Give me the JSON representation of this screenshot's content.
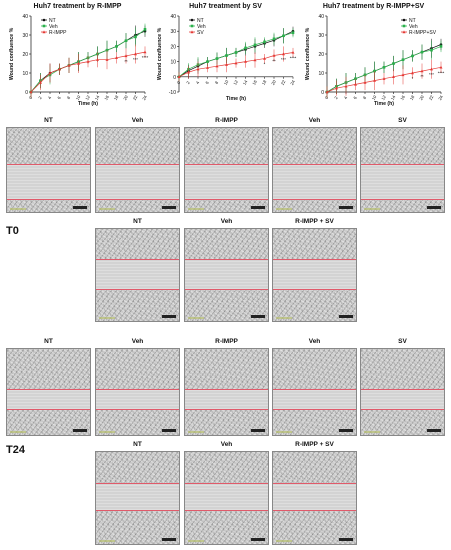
{
  "charts": [
    {
      "title": "Huh7 treatment by R-IMPP",
      "legend": [
        "NT",
        "Veh",
        "R-IMPP"
      ]
    },
    {
      "title": "Huh7 treatment by SV",
      "legend": [
        "NT",
        "Veh",
        "SV"
      ]
    },
    {
      "title": "Huh7 treatment by R-IMPP+SV",
      "legend": [
        "NT",
        "Veh",
        "R-IMPP+SV"
      ]
    }
  ],
  "colors": {
    "NT": "#111111",
    "Veh": "#2bb24c",
    "Treat": "#e53935",
    "line": "#e05a6a"
  },
  "chart_data": [
    {
      "type": "line",
      "title": "Huh7 treatment by R-IMPP",
      "xlabel": "Time (h)",
      "ylabel": "Wound confluence %",
      "x": [
        0,
        2,
        4,
        6,
        8,
        10,
        12,
        14,
        16,
        18,
        20,
        22,
        24
      ],
      "xlim": [
        0,
        24
      ],
      "ylim": [
        0,
        40
      ],
      "yticks": [
        0,
        10,
        20,
        30,
        40
      ],
      "series": [
        {
          "name": "NT",
          "values": [
            0,
            6,
            10,
            12,
            14,
            16,
            18,
            20,
            22,
            24,
            27,
            30,
            32
          ]
        },
        {
          "name": "Veh",
          "values": [
            0,
            6,
            9,
            12,
            14,
            16,
            18,
            20,
            22,
            24,
            27,
            29,
            33
          ]
        },
        {
          "name": "R-IMPP",
          "values": [
            0,
            5,
            10,
            12,
            14,
            15,
            16,
            17,
            17,
            18,
            19,
            20,
            21
          ]
        }
      ],
      "annotations": [
        "**",
        "***",
        "****"
      ],
      "legend": "top-left"
    },
    {
      "type": "line",
      "title": "Huh7 treatment by SV",
      "xlabel": "Time (h)",
      "ylabel": "Wound confluence %",
      "x": [
        0,
        2,
        4,
        6,
        8,
        10,
        12,
        14,
        16,
        18,
        20,
        22,
        24
      ],
      "xlim": [
        0,
        24
      ],
      "ylim": [
        -10,
        40
      ],
      "yticks": [
        -10,
        0,
        10,
        20,
        30,
        40
      ],
      "series": [
        {
          "name": "NT",
          "values": [
            0,
            4,
            7,
            10,
            12,
            14,
            16,
            18,
            20,
            22,
            24,
            27,
            30
          ]
        },
        {
          "name": "Veh",
          "values": [
            0,
            5,
            8,
            10,
            12,
            14,
            16,
            19,
            21,
            23,
            25,
            27,
            29
          ]
        },
        {
          "name": "SV",
          "values": [
            0,
            3,
            5,
            6,
            7,
            8,
            9,
            10,
            11,
            12,
            14,
            15,
            16
          ]
        }
      ],
      "annotations": [
        "*",
        "**",
        "***",
        "****"
      ],
      "legend": "top-left"
    },
    {
      "type": "line",
      "title": "Huh7 treatment by R-IMPP+SV",
      "xlabel": "Time (h)",
      "ylabel": "Wound confluence %",
      "x": [
        0,
        2,
        4,
        6,
        8,
        10,
        12,
        14,
        16,
        18,
        20,
        22,
        24
      ],
      "xlim": [
        0,
        24
      ],
      "ylim": [
        0,
        40
      ],
      "yticks": [
        0,
        10,
        20,
        30,
        40
      ],
      "series": [
        {
          "name": "NT",
          "values": [
            0,
            3,
            5,
            7,
            9,
            11,
            13,
            15,
            17,
            19,
            21,
            23,
            25
          ]
        },
        {
          "name": "Veh",
          "values": [
            0,
            3,
            5,
            7,
            9,
            11,
            13,
            15,
            17,
            19,
            21,
            22,
            24
          ]
        },
        {
          "name": "R-IMPP+SV",
          "values": [
            0,
            2,
            3,
            4,
            5,
            6,
            7,
            8,
            9,
            10,
            11,
            12,
            13
          ]
        }
      ],
      "annotations": [
        "*",
        "**",
        "***",
        "****"
      ],
      "legend": "top-right"
    }
  ],
  "row1_labels": [
    "NT",
    "Veh",
    "R-IMPP",
    "Veh",
    "SV"
  ],
  "row2_labels": [
    "NT",
    "Veh",
    "R-IMPP + SV"
  ],
  "row3_labels": [
    "NT",
    "Veh",
    "R-IMPP",
    "Veh",
    "SV"
  ],
  "row4_labels": [
    "NT",
    "Veh",
    "R-IMPP + SV"
  ],
  "timepoints": {
    "t0": "T0",
    "t24": "T24"
  }
}
